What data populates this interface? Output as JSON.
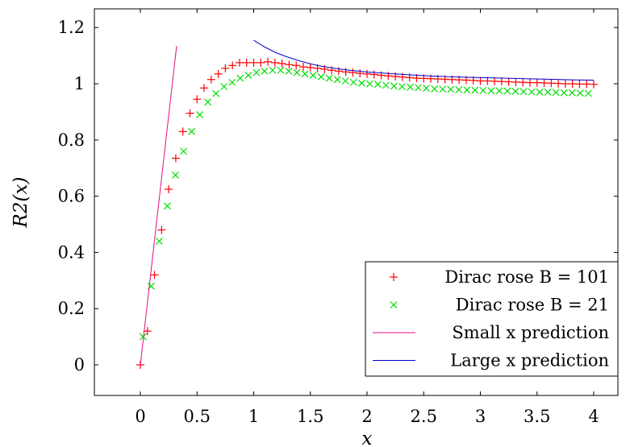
{
  "chart_data": {
    "type": "scatter",
    "xlabel": "x",
    "ylabel": "R2(x)",
    "xlim": [
      -0.4,
      4.25
    ],
    "ylim": [
      -0.11,
      1.265
    ],
    "x_ticks": [
      "0",
      "0.5",
      "1",
      "1.5",
      "2",
      "2.5",
      "3",
      "3.5",
      "4"
    ],
    "y_ticks": [
      "0",
      "0.2",
      "0.4",
      "0.6",
      "0.8",
      "1",
      "1.2"
    ],
    "grid": false,
    "legend_position": "bottom-right",
    "series": [
      {
        "name": "Dirac rose B = 101",
        "marker": "plus",
        "color": "#ff0000",
        "x": [
          0.0,
          0.0625,
          0.125,
          0.1875,
          0.25,
          0.3125,
          0.375,
          0.4375,
          0.5,
          0.5625,
          0.625,
          0.6875,
          0.75,
          0.8125,
          0.875,
          0.9375,
          1.0,
          1.0625,
          1.125,
          1.1875,
          1.25,
          1.3125,
          1.375,
          1.4375,
          1.5,
          1.5625,
          1.625,
          1.6875,
          1.75,
          1.8125,
          1.875,
          1.9375,
          2.0,
          2.0625,
          2.125,
          2.1875,
          2.25,
          2.3125,
          2.375,
          2.4375,
          2.5,
          2.5625,
          2.625,
          2.6875,
          2.75,
          2.8125,
          2.875,
          2.9375,
          3.0,
          3.0625,
          3.125,
          3.1875,
          3.25,
          3.3125,
          3.375,
          3.4375,
          3.5,
          3.5625,
          3.625,
          3.6875,
          3.75,
          3.8125,
          3.875,
          3.9375,
          4.0
        ],
        "y": [
          0.0,
          0.12,
          0.32,
          0.48,
          0.625,
          0.735,
          0.83,
          0.895,
          0.945,
          0.985,
          1.015,
          1.035,
          1.055,
          1.065,
          1.075,
          1.075,
          1.075,
          1.075,
          1.078,
          1.075,
          1.072,
          1.068,
          1.065,
          1.06,
          1.058,
          1.055,
          1.052,
          1.048,
          1.045,
          1.042,
          1.04,
          1.037,
          1.035,
          1.033,
          1.03,
          1.028,
          1.026,
          1.024,
          1.022,
          1.02,
          1.019,
          1.018,
          1.017,
          1.016,
          1.015,
          1.014,
          1.013,
          1.012,
          1.01,
          1.01,
          1.009,
          1.008,
          1.007,
          1.006,
          1.005,
          1.004,
          1.004,
          1.003,
          1.002,
          1.001,
          1.0,
          1.0,
          0.999,
          0.999,
          0.998
        ]
      },
      {
        "name": "Dirac rose B = 21",
        "marker": "cross",
        "color": "#00dd00",
        "x": [
          0.0238,
          0.0952,
          0.1667,
          0.2381,
          0.3095,
          0.381,
          0.4524,
          0.5238,
          0.5952,
          0.6667,
          0.7381,
          0.8095,
          0.881,
          0.9524,
          1.0238,
          1.0952,
          1.1667,
          1.2381,
          1.3095,
          1.381,
          1.4524,
          1.5238,
          1.5952,
          1.6667,
          1.7381,
          1.8095,
          1.881,
          1.9524,
          2.0238,
          2.0952,
          2.1667,
          2.2381,
          2.3095,
          2.381,
          2.4524,
          2.5238,
          2.5952,
          2.6667,
          2.7381,
          2.8095,
          2.881,
          2.9524,
          3.0238,
          3.0952,
          3.1667,
          3.2381,
          3.3095,
          3.381,
          3.4524,
          3.5238,
          3.5952,
          3.6667,
          3.7381,
          3.8095,
          3.881,
          3.9524
        ],
        "y": [
          0.1,
          0.28,
          0.44,
          0.565,
          0.675,
          0.76,
          0.83,
          0.89,
          0.935,
          0.965,
          0.99,
          1.005,
          1.02,
          1.03,
          1.04,
          1.045,
          1.048,
          1.048,
          1.045,
          1.04,
          1.035,
          1.03,
          1.025,
          1.02,
          1.015,
          1.01,
          1.005,
          1.002,
          1.0,
          0.998,
          0.995,
          0.992,
          0.99,
          0.988,
          0.986,
          0.984,
          0.982,
          0.981,
          0.98,
          0.979,
          0.978,
          0.977,
          0.976,
          0.975,
          0.975,
          0.974,
          0.973,
          0.972,
          0.971,
          0.97,
          0.97,
          0.969,
          0.968,
          0.968,
          0.967,
          0.966
        ]
      },
      {
        "name": "Small x prediction",
        "line": true,
        "color": "#e0117f",
        "x": [
          0.0,
          0.32
        ],
        "y": [
          0.0,
          1.135
        ]
      },
      {
        "name": "Large x prediction",
        "line": true,
        "color": "#0000cc",
        "x": [
          1.0,
          1.1,
          1.2,
          1.3,
          1.4,
          1.5,
          1.6,
          1.8,
          2.0,
          2.2,
          2.4,
          2.6,
          2.8,
          3.0,
          3.2,
          3.4,
          3.6,
          3.8,
          4.0
        ],
        "y": [
          1.155,
          1.13,
          1.11,
          1.095,
          1.082,
          1.071,
          1.062,
          1.05,
          1.042,
          1.036,
          1.031,
          1.027,
          1.024,
          1.022,
          1.02,
          1.018,
          1.016,
          1.014,
          1.013
        ]
      }
    ]
  }
}
